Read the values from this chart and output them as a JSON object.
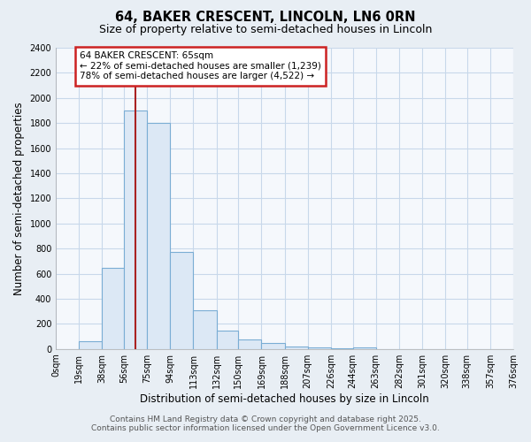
{
  "title": "64, BAKER CRESCENT, LINCOLN, LN6 0RN",
  "subtitle": "Size of property relative to semi-detached houses in Lincoln",
  "xlabel": "Distribution of semi-detached houses by size in Lincoln",
  "ylabel": "Number of semi-detached properties",
  "bins": [
    0,
    19,
    38,
    56,
    75,
    94,
    113,
    132,
    150,
    169,
    188,
    207,
    226,
    244,
    263,
    282,
    301,
    320,
    338,
    357,
    376
  ],
  "bin_labels": [
    "0sqm",
    "19sqm",
    "38sqm",
    "56sqm",
    "75sqm",
    "94sqm",
    "113sqm",
    "132sqm",
    "150sqm",
    "169sqm",
    "188sqm",
    "207sqm",
    "226sqm",
    "244sqm",
    "263sqm",
    "282sqm",
    "301sqm",
    "320sqm",
    "338sqm",
    "357sqm",
    "376sqm"
  ],
  "values": [
    0,
    60,
    645,
    1900,
    1800,
    775,
    310,
    145,
    75,
    45,
    20,
    10,
    5,
    15,
    0,
    0,
    0,
    0,
    0,
    0
  ],
  "bar_color": "#dce8f5",
  "bar_edge_color": "#7aadd4",
  "property_value": 65,
  "vline_color": "#aa2222",
  "annotation_line1": "64 BAKER CRESCENT: 65sqm",
  "annotation_line2": "← 22% of semi-detached houses are smaller (1,239)",
  "annotation_line3": "78% of semi-detached houses are larger (4,522) →",
  "annotation_box_color": "#ffffff",
  "annotation_box_edge": "#cc2222",
  "ylim": [
    0,
    2400
  ],
  "yticks": [
    0,
    200,
    400,
    600,
    800,
    1000,
    1200,
    1400,
    1600,
    1800,
    2000,
    2200,
    2400
  ],
  "footer1": "Contains HM Land Registry data © Crown copyright and database right 2025.",
  "footer2": "Contains public sector information licensed under the Open Government Licence v3.0.",
  "background_color": "#e8eef4",
  "plot_bg_color": "#f5f8fc",
  "grid_color": "#c8d8ea",
  "title_fontsize": 10.5,
  "subtitle_fontsize": 9,
  "tick_fontsize": 7,
  "label_fontsize": 8.5,
  "footer_fontsize": 6.5,
  "annotation_fontsize": 7.5
}
